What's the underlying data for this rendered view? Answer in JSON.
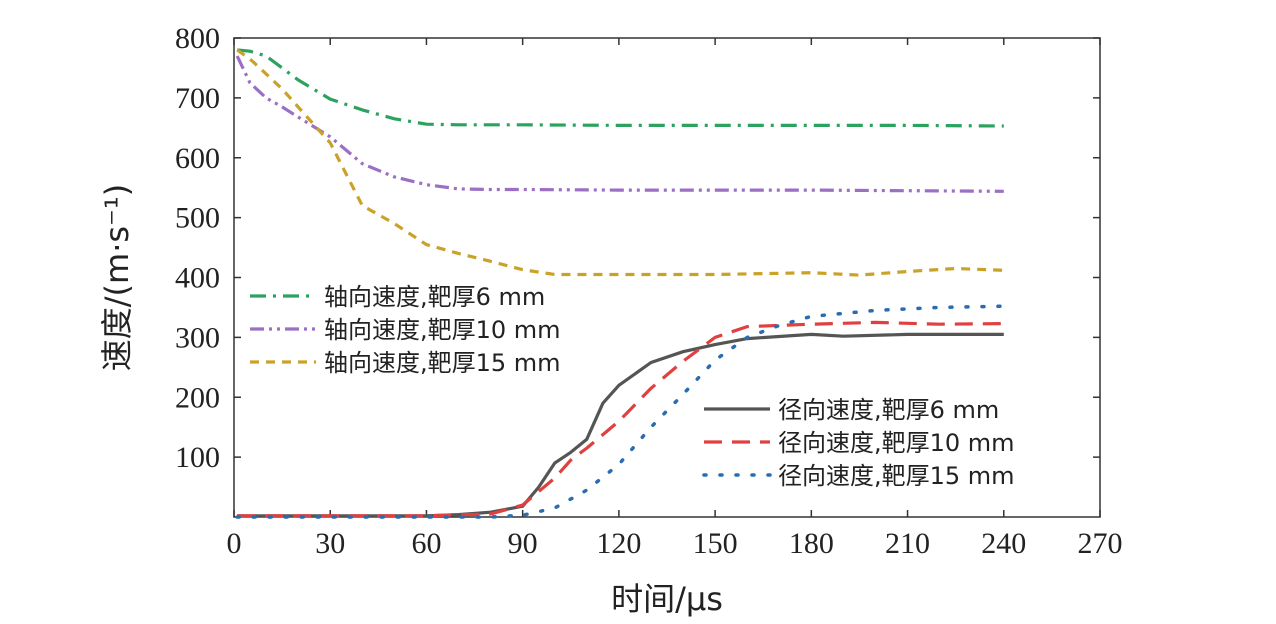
{
  "chart_data": {
    "type": "line",
    "xlabel": "时间/μs",
    "ylabel": "速度/(m·s⁻¹)",
    "xlim": [
      0,
      270
    ],
    "ylim": [
      0,
      800
    ],
    "xticks": [
      "0",
      "30",
      "60",
      "90",
      "120",
      "150",
      "180",
      "210",
      "240",
      "270"
    ],
    "yticks": [
      "100",
      "200",
      "300",
      "400",
      "500",
      "600",
      "700",
      "800"
    ],
    "grid": false,
    "series": [
      {
        "name": "轴向速度,靶厚6 mm",
        "group": "axial",
        "color": "#2ca25f",
        "dash": "dashdot",
        "x": [
          1,
          5,
          10,
          15,
          20,
          30,
          40,
          50,
          60,
          70,
          90,
          120,
          150,
          180,
          210,
          240
        ],
        "y": [
          780,
          778,
          770,
          750,
          730,
          698,
          680,
          665,
          656,
          655,
          655,
          654,
          654,
          654,
          654,
          653
        ]
      },
      {
        "name": "轴向速度,靶厚10 mm",
        "group": "axial",
        "color": "#9b6fc4",
        "dash": "dashdotdot",
        "x": [
          1,
          5,
          10,
          15,
          20,
          30,
          40,
          50,
          60,
          70,
          80,
          90,
          120,
          150,
          180,
          210,
          240
        ],
        "y": [
          770,
          725,
          700,
          685,
          668,
          635,
          590,
          568,
          555,
          548,
          547,
          547,
          546,
          546,
          546,
          545,
          544
        ]
      },
      {
        "name": "轴向速度,靶厚15 mm",
        "group": "axial",
        "color": "#c9a227",
        "dash": "dash",
        "x": [
          1,
          5,
          10,
          15,
          20,
          30,
          40,
          50,
          60,
          70,
          80,
          90,
          100,
          120,
          150,
          180,
          195,
          210,
          225,
          240
        ],
        "y": [
          780,
          765,
          740,
          715,
          685,
          625,
          520,
          490,
          455,
          440,
          427,
          413,
          405,
          405,
          405,
          408,
          404,
          410,
          415,
          412
        ]
      },
      {
        "name": "径向速度,靶厚6 mm",
        "group": "radial",
        "color": "#555555",
        "dash": "solid",
        "x": [
          1,
          30,
          60,
          70,
          80,
          90,
          95,
          100,
          105,
          110,
          115,
          120,
          130,
          140,
          150,
          160,
          180,
          190,
          210,
          240
        ],
        "y": [
          2,
          2,
          2,
          4,
          8,
          18,
          50,
          90,
          108,
          130,
          190,
          220,
          258,
          276,
          288,
          298,
          305,
          302,
          305,
          305
        ]
      },
      {
        "name": "径向速度,靶厚10 mm",
        "group": "radial",
        "color": "#e04040",
        "dash": "longdash",
        "x": [
          1,
          30,
          60,
          80,
          90,
          100,
          105,
          110,
          120,
          130,
          140,
          150,
          160,
          180,
          200,
          220,
          240
        ],
        "y": [
          2,
          2,
          2,
          5,
          20,
          65,
          95,
          115,
          160,
          215,
          260,
          300,
          318,
          322,
          325,
          322,
          323
        ]
      },
      {
        "name": "径向速度,靶厚15 mm",
        "group": "radial",
        "color": "#2b6cb0",
        "dash": "dotted",
        "x": [
          1,
          30,
          60,
          80,
          90,
          100,
          110,
          120,
          130,
          140,
          150,
          160,
          170,
          180,
          200,
          220,
          240
        ],
        "y": [
          0,
          0,
          0,
          0,
          3,
          15,
          45,
          88,
          150,
          205,
          262,
          300,
          320,
          335,
          345,
          350,
          352
        ]
      }
    ]
  }
}
